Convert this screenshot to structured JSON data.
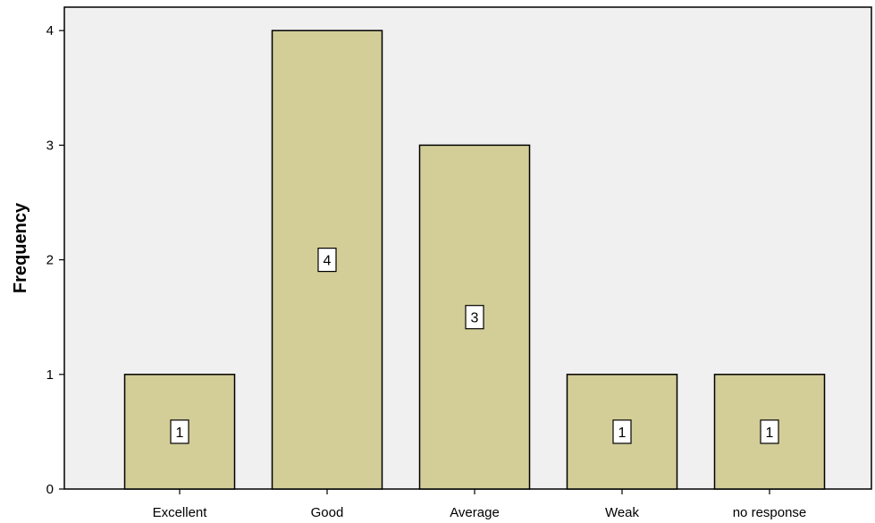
{
  "chart_data": {
    "type": "bar",
    "categories": [
      "Excellent",
      "Good",
      "Average",
      "Weak",
      "no response"
    ],
    "values": [
      1,
      4,
      3,
      1,
      1
    ],
    "data_labels": [
      "1",
      "4",
      "3",
      "1",
      "1"
    ],
    "title": "",
    "xlabel": "",
    "ylabel": "Frequency",
    "yticks": [
      0,
      1,
      2,
      3,
      4
    ],
    "ylim": [
      0,
      4.2
    ],
    "grid": false,
    "colors": {
      "bar_fill": "#d3cd98",
      "bar_stroke": "#000000",
      "plot_background": "#f0f0f0"
    }
  }
}
